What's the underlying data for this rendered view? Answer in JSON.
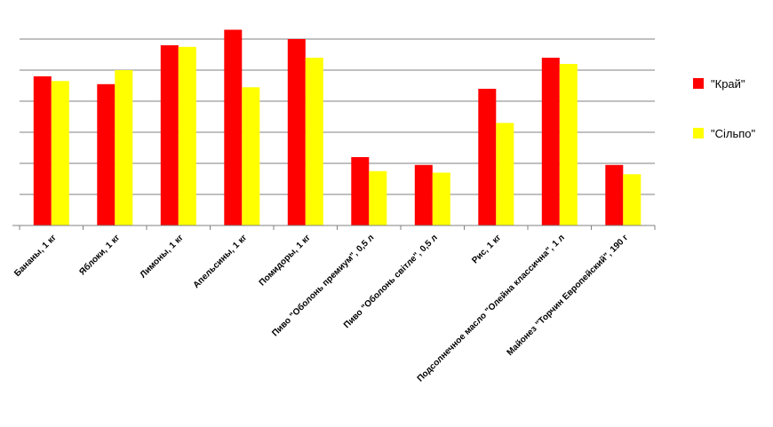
{
  "chart_data": {
    "type": "bar",
    "categories": [
      "Бананы, 1 кг",
      "Яблоки, 1 кг",
      "Лимоны, 1 кг",
      "Апельсины, 1 кг",
      "Помидоры, 1 кг",
      "Пиво \"Оболонь премиум\", 0,5 л",
      "Пиво \"Оболонь світле\", 0,5 л",
      "Рис, 1 кг",
      "Подсолнечное масло \"Олейна классична\", 1 л",
      "Майонез \"Торчин Европейский\", 190 г"
    ],
    "series": [
      {
        "name": "\"Край\"",
        "color": "#ff0000",
        "values": [
          4.8,
          4.55,
          5.8,
          6.3,
          6.0,
          2.2,
          1.95,
          4.4,
          5.4,
          1.95
        ]
      },
      {
        "name": "\"Сільпо\"",
        "color": "#ffff00",
        "values": [
          4.65,
          5.0,
          5.75,
          4.45,
          5.4,
          1.75,
          1.7,
          3.3,
          5.2,
          1.65
        ]
      }
    ],
    "ylim": [
      0,
      6.4
    ],
    "ytick_step": 1,
    "grid": true,
    "legend_position": "right",
    "title": "",
    "xlabel": "",
    "ylabel": ""
  }
}
